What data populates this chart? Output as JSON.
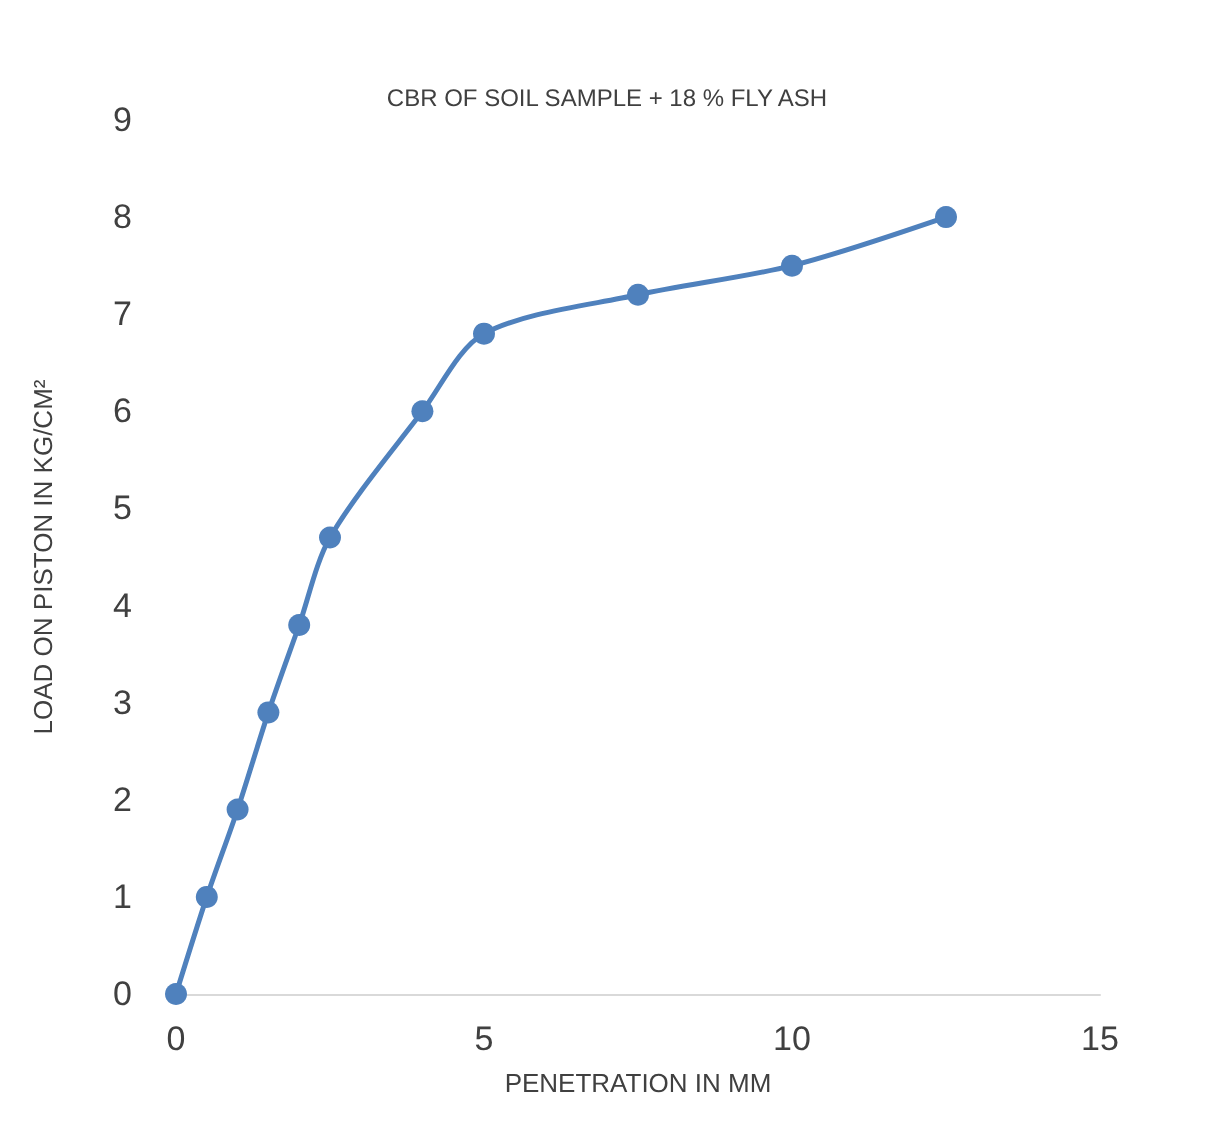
{
  "chart_data": {
    "type": "line",
    "title": "CBR OF SOIL SAMPLE + 18 % FLY ASH",
    "xlabel": "PENETRATION IN MM",
    "ylabel": "LOAD ON PISTON IN KG/CM²",
    "x": [
      0,
      0.5,
      1,
      1.5,
      2,
      2.5,
      4,
      5,
      7.5,
      10,
      12.5
    ],
    "series": [
      {
        "color": "#4f81bd",
        "values": [
          0,
          1.0,
          1.9,
          2.9,
          3.8,
          4.7,
          6.0,
          6.8,
          7.2,
          7.5,
          8.0
        ]
      }
    ],
    "xlim": [
      0,
      15
    ],
    "xticks": [
      0,
      5,
      10,
      15
    ],
    "ylim": [
      0,
      9
    ],
    "yticks": [
      0,
      1,
      2,
      3,
      4,
      5,
      6,
      7,
      8,
      9
    ],
    "grid": false,
    "marker": "circle",
    "line_style": "solid"
  }
}
